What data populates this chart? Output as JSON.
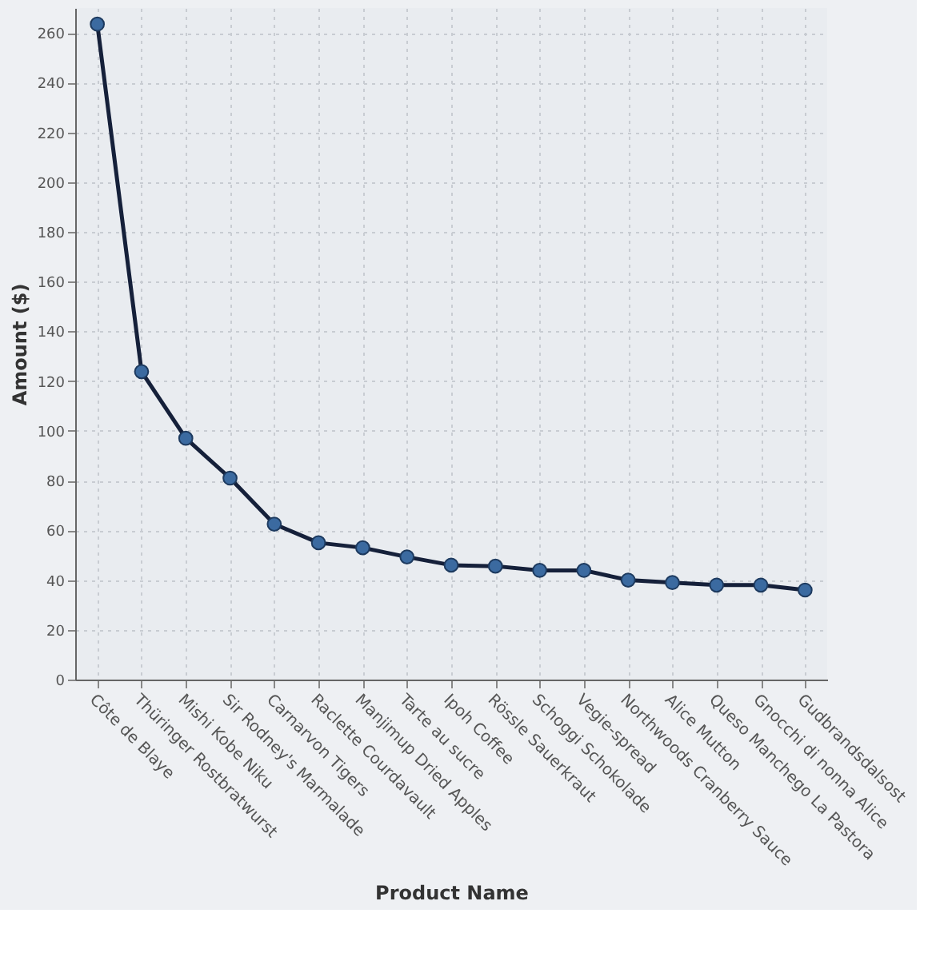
{
  "chart_data": {
    "type": "line",
    "xlabel": "Product Name",
    "ylabel": "Amount ($)",
    "categories": [
      "Côte de Blaye",
      "Thüringer Rostbratwurst",
      "Mishi Kobe Niku",
      "Sir Rodney's Marmalade",
      "Carnarvon Tigers",
      "Raclette Courdavault",
      "Manjimup Dried Apples",
      "Tarte au sucre",
      "Ipoh Coffee",
      "Rössle Sauerkraut",
      "Schoggi Schokolade",
      "Vegie-spread",
      "Northwoods Cranberry Sauce",
      "Alice Mutton",
      "Queso Manchego La Pastora",
      "Gnocchi di nonna Alice",
      "Gudbrandsdalsost"
    ],
    "series": [
      {
        "color": "#15203a",
        "values": [
          263.5,
          123.8,
          97,
          81,
          62.5,
          55,
          53,
          49.3,
          46,
          45.6,
          43.9,
          43.9,
          40,
          39,
          38,
          38,
          36
        ]
      }
    ],
    "ylim": [
      0,
      270
    ],
    "yticks": [
      0,
      20,
      40,
      60,
      80,
      100,
      120,
      140,
      160,
      180,
      200,
      220,
      240,
      260
    ],
    "grid": true,
    "marker": "circle",
    "line_style": "solid",
    "legend": false
  }
}
